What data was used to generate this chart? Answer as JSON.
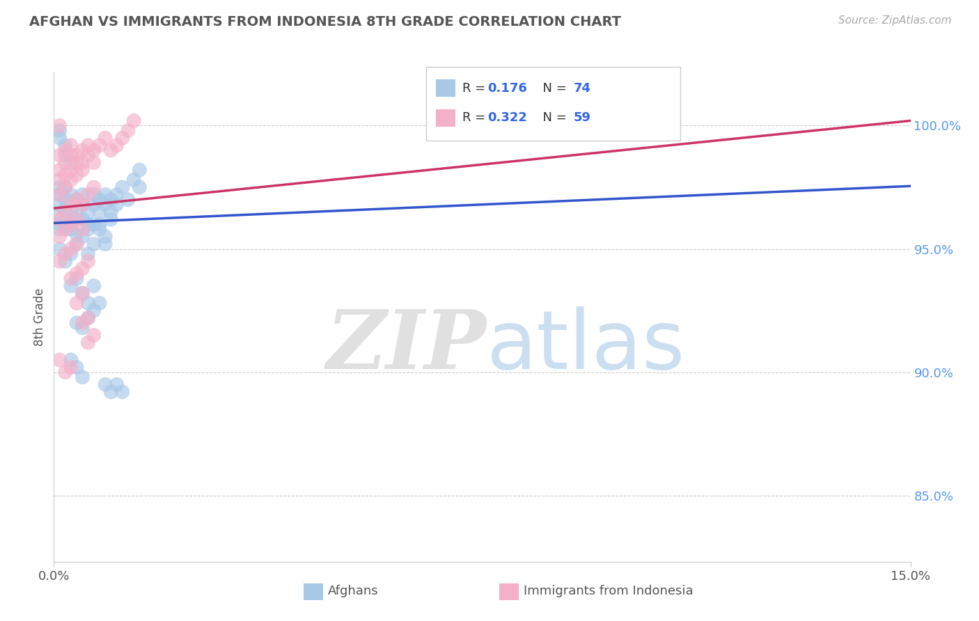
{
  "title": "AFGHAN VS IMMIGRANTS FROM INDONESIA 8TH GRADE CORRELATION CHART",
  "source": "Source: ZipAtlas.com",
  "ylabel": "8th Grade",
  "y_ticks": [
    0.85,
    0.9,
    0.95,
    1.0
  ],
  "y_tick_labels": [
    "85.0%",
    "90.0%",
    "95.0%",
    "100.0%"
  ],
  "x_min": 0.0,
  "x_max": 0.15,
  "y_min": 0.823,
  "y_max": 1.022,
  "blue_color": "#a8c8e8",
  "pink_color": "#f4b0c8",
  "blue_line_color": "#3355cc",
  "pink_line_color": "#cc3366",
  "R_blue": 0.176,
  "N_blue": 74,
  "R_pink": 0.322,
  "N_pink": 59,
  "legend_label_blue": "Afghans",
  "legend_label_pink": "Immigrants from Indonesia",
  "blue_scatter_x": [
    0.001,
    0.001,
    0.001,
    0.001,
    0.001,
    0.001,
    0.002,
    0.002,
    0.002,
    0.002,
    0.002,
    0.003,
    0.003,
    0.003,
    0.003,
    0.004,
    0.004,
    0.004,
    0.005,
    0.005,
    0.005,
    0.006,
    0.006,
    0.006,
    0.007,
    0.007,
    0.007,
    0.008,
    0.008,
    0.009,
    0.009,
    0.01,
    0.01,
    0.011,
    0.011,
    0.012,
    0.013,
    0.014,
    0.015,
    0.015,
    0.001,
    0.002,
    0.003,
    0.004,
    0.005,
    0.006,
    0.007,
    0.008,
    0.009,
    0.01,
    0.003,
    0.004,
    0.005,
    0.006,
    0.007,
    0.004,
    0.005,
    0.006,
    0.007,
    0.008,
    0.003,
    0.004,
    0.005,
    0.009,
    0.01,
    0.011,
    0.012,
    0.002,
    0.003,
    0.002,
    0.001,
    0.001,
    0.008,
    0.009
  ],
  "blue_scatter_y": [
    0.968,
    0.972,
    0.964,
    0.958,
    0.96,
    0.975,
    0.966,
    0.97,
    0.962,
    0.958,
    0.975,
    0.972,
    0.965,
    0.958,
    0.96,
    0.97,
    0.963,
    0.956,
    0.968,
    0.962,
    0.972,
    0.96,
    0.965,
    0.958,
    0.972,
    0.968,
    0.96,
    0.965,
    0.97,
    0.968,
    0.972,
    0.97,
    0.965,
    0.972,
    0.968,
    0.975,
    0.97,
    0.978,
    0.975,
    0.982,
    0.95,
    0.945,
    0.948,
    0.952,
    0.955,
    0.948,
    0.952,
    0.96,
    0.955,
    0.962,
    0.935,
    0.938,
    0.932,
    0.928,
    0.935,
    0.92,
    0.918,
    0.922,
    0.925,
    0.928,
    0.905,
    0.902,
    0.898,
    0.895,
    0.892,
    0.895,
    0.892,
    0.988,
    0.985,
    0.992,
    0.998,
    0.995,
    0.958,
    0.952
  ],
  "pink_scatter_x": [
    0.001,
    0.001,
    0.001,
    0.001,
    0.002,
    0.002,
    0.002,
    0.002,
    0.003,
    0.003,
    0.003,
    0.003,
    0.004,
    0.004,
    0.004,
    0.005,
    0.005,
    0.005,
    0.006,
    0.006,
    0.007,
    0.007,
    0.008,
    0.009,
    0.01,
    0.011,
    0.012,
    0.013,
    0.001,
    0.002,
    0.003,
    0.004,
    0.005,
    0.006,
    0.007,
    0.001,
    0.002,
    0.003,
    0.004,
    0.005,
    0.001,
    0.002,
    0.003,
    0.004,
    0.003,
    0.004,
    0.005,
    0.006,
    0.004,
    0.005,
    0.005,
    0.006,
    0.006,
    0.007,
    0.001,
    0.002,
    0.003,
    0.001,
    0.014
  ],
  "pink_scatter_y": [
    0.978,
    0.982,
    0.972,
    0.988,
    0.98,
    0.985,
    0.975,
    0.99,
    0.982,
    0.978,
    0.988,
    0.992,
    0.985,
    0.98,
    0.988,
    0.982,
    0.99,
    0.985,
    0.988,
    0.992,
    0.99,
    0.985,
    0.992,
    0.995,
    0.99,
    0.992,
    0.995,
    0.998,
    0.962,
    0.965,
    0.968,
    0.97,
    0.968,
    0.972,
    0.975,
    0.955,
    0.958,
    0.96,
    0.962,
    0.958,
    0.945,
    0.948,
    0.95,
    0.952,
    0.938,
    0.94,
    0.942,
    0.945,
    0.928,
    0.932,
    0.92,
    0.922,
    0.912,
    0.915,
    0.905,
    0.9,
    0.902,
    1.0,
    1.002
  ]
}
